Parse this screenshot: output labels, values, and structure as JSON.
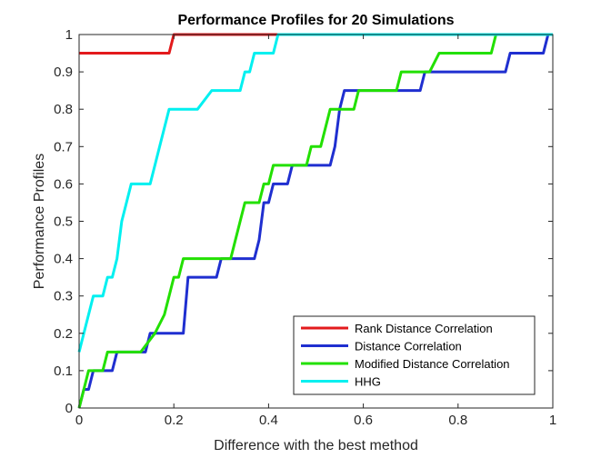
{
  "chart_data": {
    "type": "line",
    "title": "Performance Profiles for 20 Simulations",
    "xlabel": "Difference with the best method",
    "ylabel": "Performance Profiles",
    "xlim": [
      0,
      1
    ],
    "ylim": [
      0,
      1
    ],
    "xticks": [
      0,
      0.2,
      0.4,
      0.6,
      0.8,
      1
    ],
    "xtick_labels": [
      "0",
      "0.2",
      "0.4",
      "0.6",
      "0.8",
      "1"
    ],
    "yticks": [
      0,
      0.1,
      0.2,
      0.3,
      0.4,
      0.5,
      0.6,
      0.7,
      0.8,
      0.9,
      1
    ],
    "ytick_labels": [
      "0",
      "0.1",
      "0.2",
      "0.3",
      "0.4",
      "0.5",
      "0.6",
      "0.7",
      "0.8",
      "0.9",
      "1"
    ],
    "grid": false,
    "legend_position": "bottom-right",
    "series": [
      {
        "name": "Rank Distance Correlation",
        "color": "#e31a1c",
        "x": [
          0,
          0.19,
          0.2,
          1
        ],
        "y": [
          0.95,
          0.95,
          1,
          1
        ]
      },
      {
        "name": "Distance Correlation",
        "color": "#1f2fd0",
        "x": [
          0,
          0.01,
          0.02,
          0.03,
          0.04,
          0.06,
          0.07,
          0.08,
          0.14,
          0.15,
          0.16,
          0.17,
          0.22,
          0.23,
          0.24,
          0.29,
          0.3,
          0.31,
          0.37,
          0.38,
          0.39,
          0.4,
          0.41,
          0.42,
          0.44,
          0.45,
          0.46,
          0.53,
          0.54,
          0.55,
          0.56,
          0.57,
          0.64,
          0.67,
          0.72,
          0.73,
          0.74,
          0.81,
          0.9,
          0.91,
          0.98,
          0.99,
          1
        ],
        "y": [
          0,
          0.05,
          0.05,
          0.1,
          0.1,
          0.1,
          0.1,
          0.15,
          0.15,
          0.2,
          0.2,
          0.2,
          0.2,
          0.35,
          0.35,
          0.35,
          0.4,
          0.4,
          0.4,
          0.45,
          0.55,
          0.55,
          0.6,
          0.6,
          0.6,
          0.65,
          0.65,
          0.65,
          0.7,
          0.8,
          0.85,
          0.85,
          0.85,
          0.85,
          0.85,
          0.9,
          0.9,
          0.9,
          0.9,
          0.95,
          0.95,
          1,
          1
        ]
      },
      {
        "name": "Modified Distance Correlation",
        "color": "#22e000",
        "x": [
          0,
          0.01,
          0.02,
          0.04,
          0.05,
          0.06,
          0.12,
          0.13,
          0.16,
          0.18,
          0.19,
          0.2,
          0.21,
          0.22,
          0.23,
          0.32,
          0.33,
          0.34,
          0.35,
          0.36,
          0.38,
          0.39,
          0.4,
          0.41,
          0.42,
          0.48,
          0.49,
          0.51,
          0.52,
          0.53,
          0.54,
          0.58,
          0.59,
          0.67,
          0.68,
          0.7,
          0.71,
          0.73,
          0.74,
          0.76,
          0.87,
          0.88,
          1
        ],
        "y": [
          0,
          0.05,
          0.1,
          0.1,
          0.1,
          0.15,
          0.15,
          0.15,
          0.2,
          0.25,
          0.3,
          0.35,
          0.35,
          0.4,
          0.4,
          0.4,
          0.45,
          0.5,
          0.55,
          0.55,
          0.55,
          0.6,
          0.6,
          0.65,
          0.65,
          0.65,
          0.7,
          0.7,
          0.75,
          0.8,
          0.8,
          0.8,
          0.85,
          0.85,
          0.9,
          0.9,
          0.9,
          0.9,
          0.9,
          0.95,
          0.95,
          1,
          1
        ]
      },
      {
        "name": "HHG",
        "color": "#00f0f0",
        "x": [
          0,
          0.01,
          0.02,
          0.03,
          0.04,
          0.05,
          0.06,
          0.07,
          0.08,
          0.09,
          0.1,
          0.11,
          0.12,
          0.15,
          0.16,
          0.17,
          0.18,
          0.19,
          0.2,
          0.24,
          0.25,
          0.28,
          0.29,
          0.34,
          0.35,
          0.36,
          0.37,
          0.38,
          0.39,
          0.4,
          0.41,
          0.42,
          0.43,
          0.44,
          0.46,
          1
        ],
        "y": [
          0.15,
          0.2,
          0.25,
          0.3,
          0.3,
          0.3,
          0.35,
          0.35,
          0.4,
          0.5,
          0.55,
          0.6,
          0.6,
          0.6,
          0.65,
          0.7,
          0.75,
          0.8,
          0.8,
          0.8,
          0.8,
          0.85,
          0.85,
          0.85,
          0.9,
          0.9,
          0.95,
          0.95,
          0.95,
          0.95,
          0.95,
          1,
          1,
          1,
          1,
          1
        ]
      }
    ]
  }
}
